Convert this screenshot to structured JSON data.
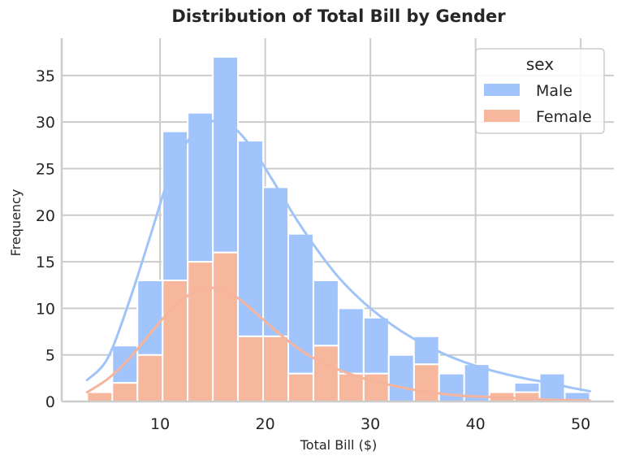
{
  "chart_data": {
    "type": "bar",
    "subtype": "stacked-histogram-with-kde",
    "title": "Distribution of Total Bill by Gender",
    "xlabel": "Total Bill ($)",
    "ylabel": "Frequency",
    "xlim": [
      0.65,
      53.15
    ],
    "ylim": [
      0,
      39
    ],
    "xticks": [
      10,
      20,
      30,
      40,
      50
    ],
    "yticks": [
      0,
      5,
      10,
      15,
      20,
      25,
      30,
      35
    ],
    "grid": true,
    "legend": {
      "title": "sex",
      "position": "top-right"
    },
    "bin_edges": [
      3.07,
      5.46,
      7.85,
      10.24,
      12.63,
      15.02,
      17.41,
      19.8,
      22.19,
      24.58,
      26.97,
      29.36,
      31.75,
      34.14,
      36.53,
      38.92,
      41.31,
      43.7,
      46.09,
      48.48,
      50.87
    ],
    "series": [
      {
        "name": "Male",
        "color": "#a1c4fd",
        "kde_color": "#a1c4f8",
        "values": [
          0,
          4,
          8,
          16,
          16,
          21,
          21,
          16,
          15,
          7,
          7,
          6,
          5,
          3,
          3,
          4,
          0,
          1,
          3,
          1
        ]
      },
      {
        "name": "Female",
        "color": "#f7b79d",
        "kde_color": "#f6b49c",
        "values": [
          1,
          2,
          5,
          13,
          15,
          16,
          7,
          7,
          3,
          6,
          3,
          3,
          0,
          4,
          0,
          0,
          1,
          1,
          0,
          0
        ]
      }
    ],
    "totals": [
      1,
      6,
      13,
      29,
      31,
      37,
      28,
      23,
      18,
      13,
      10,
      9,
      5,
      7,
      3,
      4,
      1,
      2,
      3,
      1
    ],
    "kde": {
      "x": [
        3.07,
        5,
        7,
        9,
        11,
        13,
        15,
        17,
        19,
        21,
        23,
        25,
        27,
        29,
        31,
        33,
        35,
        37,
        39,
        41,
        43,
        45,
        47,
        49,
        50.87
      ],
      "male_cumulative": [
        2.3,
        4.6,
        10.5,
        17.5,
        24.5,
        28.5,
        30.1,
        29.4,
        26.8,
        23.2,
        19.5,
        16.2,
        13.3,
        11.0,
        9.1,
        7.5,
        6.2,
        5.1,
        4.2,
        3.5,
        2.9,
        2.4,
        2.0,
        1.5,
        1.1
      ],
      "female": [
        1.0,
        2.4,
        4.5,
        7.2,
        9.8,
        11.6,
        12.2,
        11.4,
        9.6,
        7.6,
        5.8,
        4.4,
        3.4,
        2.6,
        2.0,
        1.5,
        1.1,
        0.8,
        0.6,
        0.5,
        0.4,
        0.3,
        0.2,
        0.15,
        0.1
      ]
    }
  }
}
